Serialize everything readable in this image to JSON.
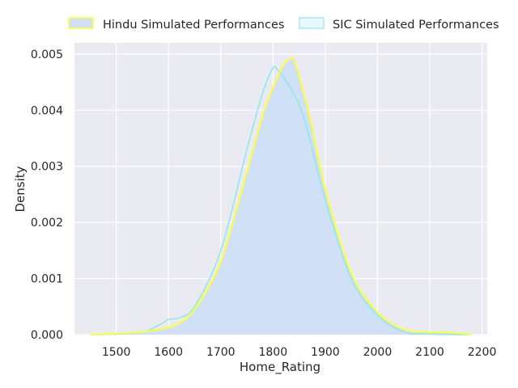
{
  "chart_data": {
    "type": "area",
    "title": "",
    "xlabel": "Home_Rating",
    "ylabel": "Density",
    "xlim": [
      1420,
      2210
    ],
    "ylim": [
      0,
      0.0052
    ],
    "x_ticks": [
      1500,
      1600,
      1700,
      1800,
      1900,
      2000,
      2100,
      2200
    ],
    "x_tick_labels": [
      "1500",
      "1600",
      "1700",
      "1800",
      "1900",
      "2000",
      "2100",
      "2200"
    ],
    "y_ticks": [
      0,
      0.001,
      0.002,
      0.003,
      0.004,
      0.005
    ],
    "y_tick_labels": [
      "0.000",
      "0.001",
      "0.002",
      "0.003",
      "0.004",
      "0.005"
    ],
    "grid": true,
    "legend_position": "top",
    "background_color": "#eaeaf2",
    "series": [
      {
        "name": "Hindu Simulated Performances",
        "line_color": "#ffff33",
        "fill_color": "#cfe0f7",
        "filled": true,
        "points": [
          [
            1450,
            0
          ],
          [
            1500,
            2e-05
          ],
          [
            1550,
            5e-05
          ],
          [
            1600,
            0.00013
          ],
          [
            1620,
            0.0002
          ],
          [
            1650,
            0.00045
          ],
          [
            1700,
            0.0013
          ],
          [
            1750,
            0.0029
          ],
          [
            1780,
            0.0039
          ],
          [
            1800,
            0.0044
          ],
          [
            1820,
            0.0048
          ],
          [
            1830,
            0.0049
          ],
          [
            1840,
            0.0049
          ],
          [
            1850,
            0.0046
          ],
          [
            1870,
            0.0039
          ],
          [
            1900,
            0.0026
          ],
          [
            1950,
            0.0011
          ],
          [
            2000,
            0.0004
          ],
          [
            2050,
            0.0001
          ],
          [
            2100,
            4e-05
          ],
          [
            2120,
            5e-05
          ],
          [
            2150,
            3e-05
          ],
          [
            2180,
            0
          ]
        ]
      },
      {
        "name": "SIC Simulated Performances",
        "line_color": "#8fe8ee",
        "fill_color": "#d9f3f7",
        "filled": false,
        "points": [
          [
            1450,
            0
          ],
          [
            1500,
            1e-05
          ],
          [
            1550,
            5e-05
          ],
          [
            1580,
            0.00016
          ],
          [
            1600,
            0.00027
          ],
          [
            1620,
            0.0003
          ],
          [
            1650,
            0.0005
          ],
          [
            1700,
            0.0015
          ],
          [
            1750,
            0.0033
          ],
          [
            1780,
            0.0043
          ],
          [
            1800,
            0.00475
          ],
          [
            1810,
            0.0047
          ],
          [
            1820,
            0.0046
          ],
          [
            1850,
            0.0041
          ],
          [
            1870,
            0.0035
          ],
          [
            1900,
            0.0024
          ],
          [
            1950,
            0.001
          ],
          [
            2000,
            0.00035
          ],
          [
            2050,
            5e-05
          ],
          [
            2100,
            1e-05
          ],
          [
            2180,
            0
          ]
        ]
      }
    ]
  }
}
